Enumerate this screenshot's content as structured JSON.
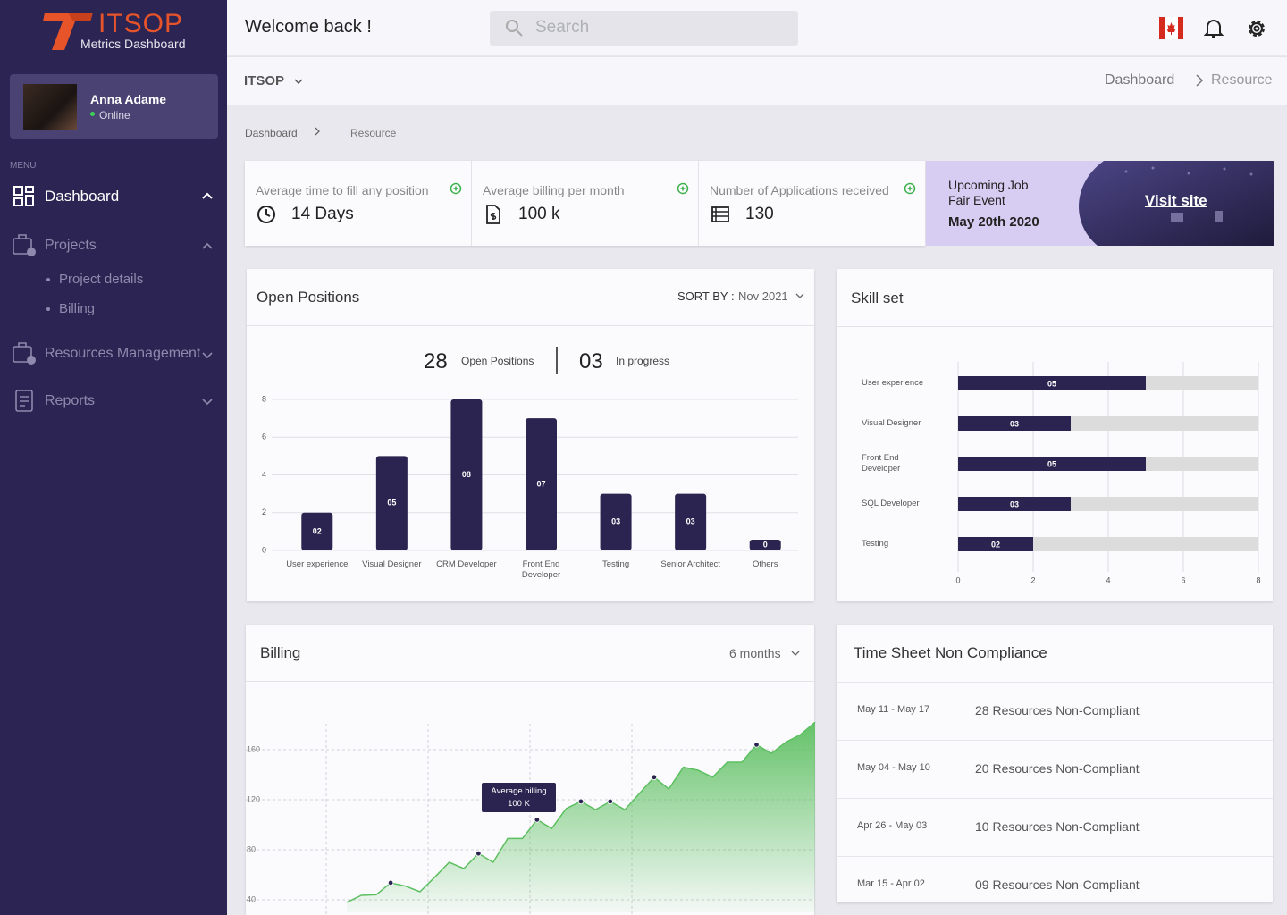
{
  "sidebar": {
    "logo": "ITSOP",
    "logo_subtitle": "Metrics Dashboard",
    "user": {
      "name": "Anna Adame",
      "status": "Online"
    },
    "menu_label": "MENU",
    "menu": [
      {
        "label": "Dashboard"
      },
      {
        "label": "Projects",
        "children": [
          "Project details",
          "Billing"
        ]
      },
      {
        "label": "Resources Management"
      },
      {
        "label": "Reports"
      }
    ]
  },
  "header": {
    "greeting": "Welcome back !",
    "search_placeholder": "Search"
  },
  "subheader": {
    "org": "ITSOP",
    "breadcrumb": [
      "Dashboard",
      "Resource"
    ]
  },
  "breadcrumb": [
    "Dashboard",
    "Resource"
  ],
  "stats": [
    {
      "label": "Average time to fill any position",
      "value": "14 Days"
    },
    {
      "label": "Average billing per month",
      "value": "100 k"
    },
    {
      "label": "Number of Applications received",
      "value": "130"
    }
  ],
  "event": {
    "title": "Upcoming Job Fair Event",
    "date": "May 20th 2020",
    "link": "Visit site"
  },
  "chart_data": [
    {
      "type": "bar",
      "title": "Open Positions",
      "sort_label": "SORT BY :",
      "sort_value": "Nov 2021",
      "summary": [
        {
          "value": "28",
          "label": "Open Positions"
        },
        {
          "value": "03",
          "label": "In progress"
        }
      ],
      "categories": [
        "User experience",
        "Visual Designer",
        "CRM Developer",
        "Front End Developer",
        "Testing",
        "Senior Architect",
        "Others"
      ],
      "values": [
        2,
        5,
        8,
        7,
        3,
        3,
        0
      ],
      "value_labels": [
        "02",
        "05",
        "08",
        "07",
        "03",
        "03",
        "0"
      ],
      "color": "#2b2450",
      "ylim": [
        0,
        8
      ],
      "yticks": [
        0,
        2,
        4,
        6,
        8
      ],
      "grid": true
    },
    {
      "type": "hbar",
      "title": "Skill set",
      "categories": [
        "User experience",
        "Visual Designer",
        "Front End Developer",
        "SQL Developer",
        "Testing"
      ],
      "values": [
        5,
        3,
        5,
        3,
        2
      ],
      "value_labels": [
        "05",
        "03",
        "05",
        "03",
        "02"
      ],
      "color": "#2b2450",
      "track_color": "#dcdcdc",
      "xlim": [
        0,
        8
      ],
      "xticks": [
        0,
        2,
        4,
        6,
        8
      ],
      "grid": true
    },
    {
      "type": "area",
      "title": "Billing",
      "period": "6 months",
      "values": [
        38,
        43.6,
        44,
        53.6,
        51,
        46.4,
        58,
        70,
        65,
        77,
        70,
        89,
        89,
        104,
        97,
        113,
        118.6,
        112,
        118.6,
        112,
        125,
        138,
        128.6,
        146,
        143.6,
        138,
        150,
        150,
        164,
        157,
        166,
        172,
        182
      ],
      "markers": [
        3,
        9,
        13,
        16,
        18,
        21,
        28
      ],
      "annotation": [
        "Average billing",
        "100 K"
      ],
      "color": "#5cbf60",
      "ylim": [
        30,
        200
      ],
      "yticks": [
        40,
        80,
        120,
        160
      ],
      "grid": true
    }
  ],
  "timesheet": {
    "title": "Time Sheet Non Compliance",
    "rows": [
      {
        "period": "May 11 - May 17",
        "text": "28 Resources Non-Compliant"
      },
      {
        "period": "May 04 - May 10",
        "text": "20 Resources Non-Compliant"
      },
      {
        "period": "Apr 26 - May 03",
        "text": "10 Resources Non-Compliant"
      },
      {
        "period": "Mar 15 - Apr 02",
        "text": "09 Resources Non-Compliant"
      }
    ]
  }
}
